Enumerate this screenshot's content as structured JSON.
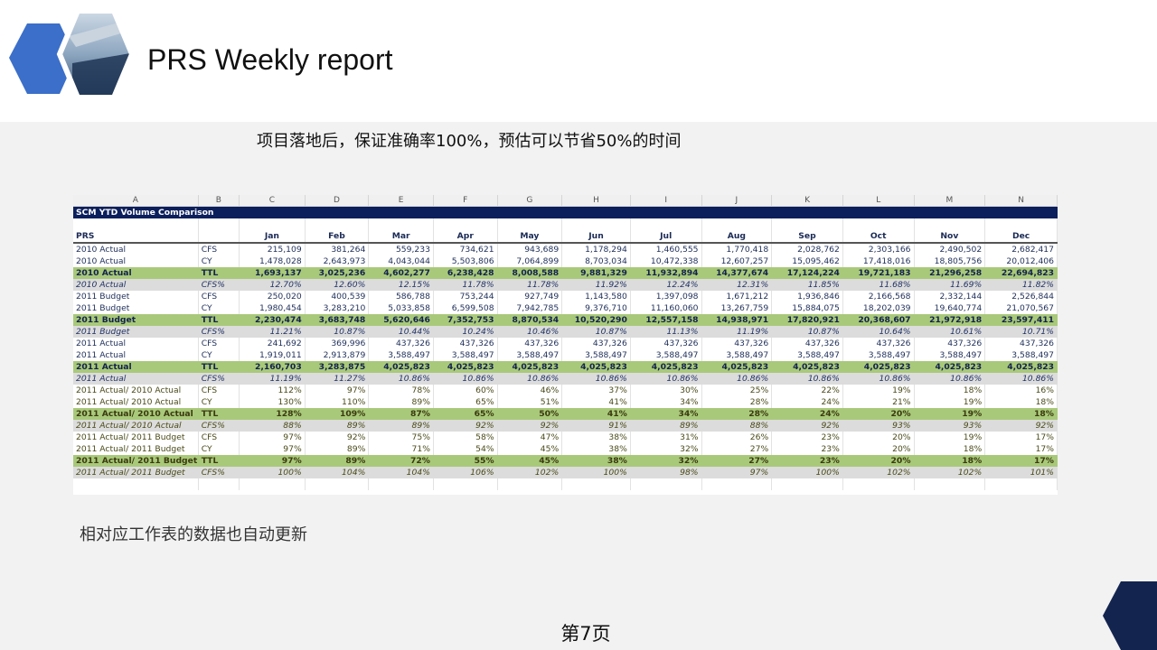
{
  "slide": {
    "title": "PRS Weekly report",
    "subtitle": "项目落地后，保证准确率100%，预估可以节省50%的时间",
    "note": "相对应工作表的数据也自动更新",
    "page_label": "第7页",
    "colors": {
      "accent_blue": "#3b6fc9",
      "navy": "#13244f",
      "ttl_green": "#a9c97a",
      "pct_gray": "#dcdcdc"
    },
    "icons": {
      "logo": "hexagon-airplane-wing-logo",
      "corner": "corner-shape"
    }
  },
  "sheet": {
    "column_letters": [
      "A",
      "B",
      "C",
      "D",
      "E",
      "F",
      "G",
      "H",
      "I",
      "J",
      "K",
      "L",
      "M",
      "N"
    ],
    "banner": "SCM YTD Volume Comparison",
    "header_label": "PRS",
    "months": [
      "Jan",
      "Feb",
      "Mar",
      "Apr",
      "May",
      "Jun",
      "Jul",
      "Aug",
      "Sep",
      "Oct",
      "Nov",
      "Dec"
    ],
    "rows": [
      {
        "label": "2010 Actual",
        "type": "CFS",
        "style": "normal",
        "values": [
          "215,109",
          "381,264",
          "559,233",
          "734,621",
          "943,689",
          "1,178,294",
          "1,460,555",
          "1,770,418",
          "2,028,762",
          "2,303,166",
          "2,490,502",
          "2,682,417"
        ]
      },
      {
        "label": "2010 Actual",
        "type": "CY",
        "style": "normal",
        "values": [
          "1,478,028",
          "2,643,973",
          "4,043,044",
          "5,503,806",
          "7,064,899",
          "8,703,034",
          "10,472,338",
          "12,607,257",
          "15,095,462",
          "17,418,016",
          "18,805,756",
          "20,012,406"
        ]
      },
      {
        "label": "2010 Actual",
        "type": "TTL",
        "style": "ttl",
        "values": [
          "1,693,137",
          "3,025,236",
          "4,602,277",
          "6,238,428",
          "8,008,588",
          "9,881,329",
          "11,932,894",
          "14,377,674",
          "17,124,224",
          "19,721,183",
          "21,296,258",
          "22,694,823"
        ]
      },
      {
        "label": "2010 Actual",
        "type": "CFS%",
        "style": "pct",
        "values": [
          "12.70%",
          "12.60%",
          "12.15%",
          "11.78%",
          "11.78%",
          "11.92%",
          "12.24%",
          "12.31%",
          "11.85%",
          "11.68%",
          "11.69%",
          "11.82%"
        ]
      },
      {
        "label": "2011 Budget",
        "type": "CFS",
        "style": "normal",
        "values": [
          "250,020",
          "400,539",
          "586,788",
          "753,244",
          "927,749",
          "1,143,580",
          "1,397,098",
          "1,671,212",
          "1,936,846",
          "2,166,568",
          "2,332,144",
          "2,526,844"
        ]
      },
      {
        "label": "2011 Budget",
        "type": "CY",
        "style": "normal",
        "values": [
          "1,980,454",
          "3,283,210",
          "5,033,858",
          "6,599,508",
          "7,942,785",
          "9,376,710",
          "11,160,060",
          "13,267,759",
          "15,884,075",
          "18,202,039",
          "19,640,774",
          "21,070,567"
        ]
      },
      {
        "label": "2011 Budget",
        "type": "TTL",
        "style": "ttl",
        "values": [
          "2,230,474",
          "3,683,748",
          "5,620,646",
          "7,352,753",
          "8,870,534",
          "10,520,290",
          "12,557,158",
          "14,938,971",
          "17,820,921",
          "20,368,607",
          "21,972,918",
          "23,597,411"
        ]
      },
      {
        "label": "2011 Budget",
        "type": "CFS%",
        "style": "pct",
        "values": [
          "11.21%",
          "10.87%",
          "10.44%",
          "10.24%",
          "10.46%",
          "10.87%",
          "11.13%",
          "11.19%",
          "10.87%",
          "10.64%",
          "10.61%",
          "10.71%"
        ]
      },
      {
        "label": "2011 Actual",
        "type": "CFS",
        "style": "normal",
        "values": [
          "241,692",
          "369,996",
          "437,326",
          "437,326",
          "437,326",
          "437,326",
          "437,326",
          "437,326",
          "437,326",
          "437,326",
          "437,326",
          "437,326"
        ]
      },
      {
        "label": "2011 Actual",
        "type": "CY",
        "style": "normal",
        "values": [
          "1,919,011",
          "2,913,879",
          "3,588,497",
          "3,588,497",
          "3,588,497",
          "3,588,497",
          "3,588,497",
          "3,588,497",
          "3,588,497",
          "3,588,497",
          "3,588,497",
          "3,588,497"
        ]
      },
      {
        "label": "2011 Actual",
        "type": "TTL",
        "style": "ttl",
        "values": [
          "2,160,703",
          "3,283,875",
          "4,025,823",
          "4,025,823",
          "4,025,823",
          "4,025,823",
          "4,025,823",
          "4,025,823",
          "4,025,823",
          "4,025,823",
          "4,025,823",
          "4,025,823"
        ]
      },
      {
        "label": "2011 Actual",
        "type": "CFS%",
        "style": "pct",
        "values": [
          "11.19%",
          "11.27%",
          "10.86%",
          "10.86%",
          "10.86%",
          "10.86%",
          "10.86%",
          "10.86%",
          "10.86%",
          "10.86%",
          "10.86%",
          "10.86%"
        ]
      },
      {
        "label": "2011 Actual/ 2010 Actual",
        "type": "CFS",
        "style": "ratio",
        "values": [
          "112%",
          "97%",
          "78%",
          "60%",
          "46%",
          "37%",
          "30%",
          "25%",
          "22%",
          "19%",
          "18%",
          "16%"
        ]
      },
      {
        "label": "2011 Actual/ 2010 Actual",
        "type": "CY",
        "style": "ratio",
        "values": [
          "130%",
          "110%",
          "89%",
          "65%",
          "51%",
          "41%",
          "34%",
          "28%",
          "24%",
          "21%",
          "19%",
          "18%"
        ]
      },
      {
        "label": "2011 Actual/ 2010 Actual",
        "type": "TTL",
        "style": "ratio ttl",
        "values": [
          "128%",
          "109%",
          "87%",
          "65%",
          "50%",
          "41%",
          "34%",
          "28%",
          "24%",
          "20%",
          "19%",
          "18%"
        ]
      },
      {
        "label": "2011 Actual/ 2010 Actual",
        "type": "CFS%",
        "style": "ratio pct",
        "values": [
          "88%",
          "89%",
          "89%",
          "92%",
          "92%",
          "91%",
          "89%",
          "88%",
          "92%",
          "93%",
          "93%",
          "92%"
        ]
      },
      {
        "label": "2011 Actual/ 2011 Budget",
        "type": "CFS",
        "style": "ratio",
        "values": [
          "97%",
          "92%",
          "75%",
          "58%",
          "47%",
          "38%",
          "31%",
          "26%",
          "23%",
          "20%",
          "19%",
          "17%"
        ]
      },
      {
        "label": "2011 Actual/ 2011 Budget",
        "type": "CY",
        "style": "ratio",
        "values": [
          "97%",
          "89%",
          "71%",
          "54%",
          "45%",
          "38%",
          "32%",
          "27%",
          "23%",
          "20%",
          "18%",
          "17%"
        ]
      },
      {
        "label": "2011 Actual/ 2011 Budget",
        "type": "TTL",
        "style": "ratio ttl",
        "values": [
          "97%",
          "89%",
          "72%",
          "55%",
          "45%",
          "38%",
          "32%",
          "27%",
          "23%",
          "20%",
          "18%",
          "17%"
        ]
      },
      {
        "label": "2011 Actual/ 2011 Budget",
        "type": "CFS%",
        "style": "ratio pct",
        "values": [
          "100%",
          "104%",
          "104%",
          "106%",
          "102%",
          "100%",
          "98%",
          "97%",
          "100%",
          "102%",
          "102%",
          "101%"
        ]
      }
    ]
  }
}
